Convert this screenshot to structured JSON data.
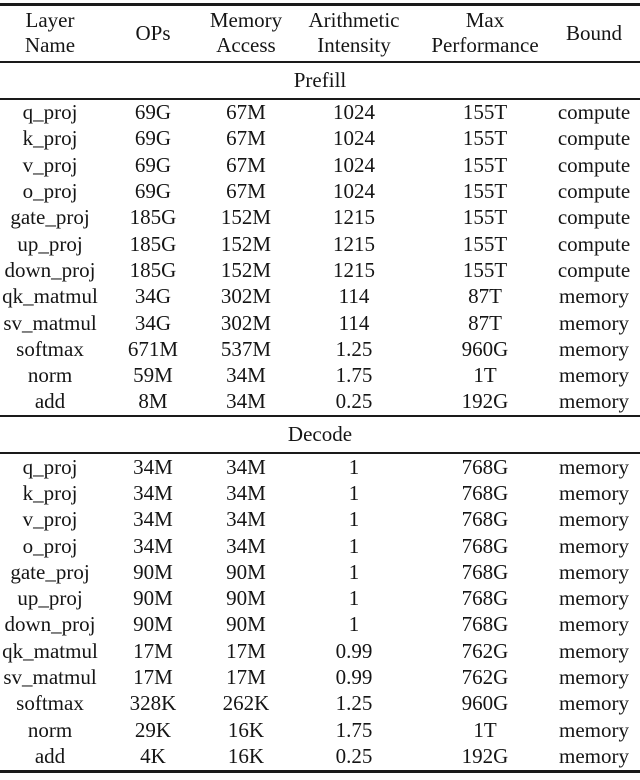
{
  "table": {
    "columns": [
      "Layer Name",
      "OPs",
      "Memory\nAccess",
      "Arithmetic\nIntensity",
      "Max\nPerformance",
      "Bound"
    ],
    "sections": [
      {
        "title": "Prefill",
        "rows": [
          [
            "q_proj",
            "69G",
            "67M",
            "1024",
            "155T",
            "compute"
          ],
          [
            "k_proj",
            "69G",
            "67M",
            "1024",
            "155T",
            "compute"
          ],
          [
            "v_proj",
            "69G",
            "67M",
            "1024",
            "155T",
            "compute"
          ],
          [
            "o_proj",
            "69G",
            "67M",
            "1024",
            "155T",
            "compute"
          ],
          [
            "gate_proj",
            "185G",
            "152M",
            "1215",
            "155T",
            "compute"
          ],
          [
            "up_proj",
            "185G",
            "152M",
            "1215",
            "155T",
            "compute"
          ],
          [
            "down_proj",
            "185G",
            "152M",
            "1215",
            "155T",
            "compute"
          ],
          [
            "qk_matmul",
            "34G",
            "302M",
            "114",
            "87T",
            "memory"
          ],
          [
            "sv_matmul",
            "34G",
            "302M",
            "114",
            "87T",
            "memory"
          ],
          [
            "softmax",
            "671M",
            "537M",
            "1.25",
            "960G",
            "memory"
          ],
          [
            "norm",
            "59M",
            "34M",
            "1.75",
            "1T",
            "memory"
          ],
          [
            "add",
            "8M",
            "34M",
            "0.25",
            "192G",
            "memory"
          ]
        ]
      },
      {
        "title": "Decode",
        "rows": [
          [
            "q_proj",
            "34M",
            "34M",
            "1",
            "768G",
            "memory"
          ],
          [
            "k_proj",
            "34M",
            "34M",
            "1",
            "768G",
            "memory"
          ],
          [
            "v_proj",
            "34M",
            "34M",
            "1",
            "768G",
            "memory"
          ],
          [
            "o_proj",
            "34M",
            "34M",
            "1",
            "768G",
            "memory"
          ],
          [
            "gate_proj",
            "90M",
            "90M",
            "1",
            "768G",
            "memory"
          ],
          [
            "up_proj",
            "90M",
            "90M",
            "1",
            "768G",
            "memory"
          ],
          [
            "down_proj",
            "90M",
            "90M",
            "1",
            "768G",
            "memory"
          ],
          [
            "qk_matmul",
            "17M",
            "17M",
            "0.99",
            "762G",
            "memory"
          ],
          [
            "sv_matmul",
            "17M",
            "17M",
            "0.99",
            "762G",
            "memory"
          ],
          [
            "softmax",
            "328K",
            "262K",
            "1.25",
            "960G",
            "memory"
          ],
          [
            "norm",
            "29K",
            "16K",
            "1.75",
            "1T",
            "memory"
          ],
          [
            "add",
            "4K",
            "16K",
            "0.25",
            "192G",
            "memory"
          ]
        ]
      }
    ]
  },
  "colors": {
    "text": "#151515",
    "rule": "#1a1a1a",
    "background": "#ffffff"
  }
}
